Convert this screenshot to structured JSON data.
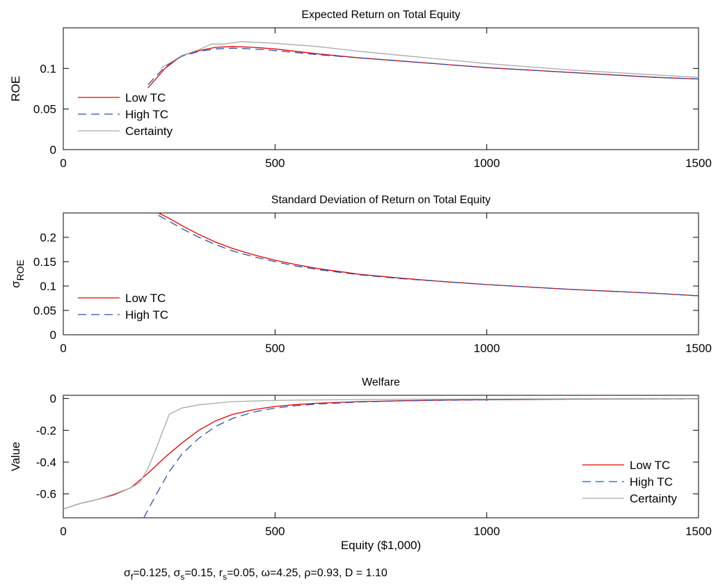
{
  "chart_data": [
    {
      "type": "line",
      "title": "Expected Return on Total Equity",
      "xlabel": "",
      "ylabel": "ROE",
      "ylabel_sub": "",
      "xlim": [
        0,
        1500
      ],
      "ylim": [
        0,
        0.15
      ],
      "xticks": [
        0,
        500,
        1000,
        1500
      ],
      "xtick_labels": [
        "0",
        "500",
        "1000",
        "1500"
      ],
      "yticks": [
        0,
        0.05,
        0.1
      ],
      "ytick_labels": [
        "0",
        "0.05",
        "0.1"
      ],
      "legend_position": "bottom-left",
      "series": [
        {
          "name": "Low TC",
          "color": "#e00000",
          "dash": "solid",
          "x": [
            200,
            240,
            280,
            320,
            360,
            400,
            450,
            500,
            600,
            700,
            800,
            900,
            1000,
            1100,
            1200,
            1300,
            1400,
            1500
          ],
          "y": [
            0.076,
            0.1,
            0.116,
            0.122,
            0.126,
            0.127,
            0.126,
            0.124,
            0.118,
            0.113,
            0.109,
            0.105,
            0.101,
            0.098,
            0.095,
            0.092,
            0.089,
            0.087
          ]
        },
        {
          "name": "High TC",
          "color": "#2a4fb0",
          "dash": "dashed",
          "x": [
            200,
            240,
            280,
            320,
            360,
            400,
            450,
            500,
            600,
            700,
            800,
            900,
            1000,
            1100,
            1200,
            1300,
            1400,
            1500
          ],
          "y": [
            0.08,
            0.102,
            0.115,
            0.121,
            0.124,
            0.125,
            0.124,
            0.122,
            0.117,
            0.113,
            0.109,
            0.105,
            0.101,
            0.098,
            0.095,
            0.092,
            0.089,
            0.087
          ]
        },
        {
          "name": "Certainty",
          "color": "#aaaaaa",
          "dash": "solid",
          "x": [
            230,
            280,
            320,
            350,
            380,
            420,
            500,
            600,
            700,
            800,
            900,
            1000,
            1100,
            1200,
            1300,
            1400,
            1500
          ],
          "y": [
            0.1,
            0.116,
            0.123,
            0.13,
            0.13,
            0.133,
            0.131,
            0.127,
            0.121,
            0.116,
            0.111,
            0.106,
            0.102,
            0.098,
            0.095,
            0.092,
            0.089
          ]
        }
      ]
    },
    {
      "type": "line",
      "title": "Standard Deviation of Return on Total Equity",
      "xlabel": "",
      "ylabel": "σ",
      "ylabel_sub": "ROE",
      "xlim": [
        0,
        1500
      ],
      "ylim": [
        0,
        0.25
      ],
      "xticks": [
        0,
        500,
        1000,
        1500
      ],
      "xtick_labels": [
        "0",
        "500",
        "1000",
        "1500"
      ],
      "yticks": [
        0,
        0.05,
        0.1,
        0.15,
        0.2
      ],
      "ytick_labels": [
        "0",
        "0.05",
        "0.1",
        "0.15",
        "0.2"
      ],
      "legend_position": "bottom-left",
      "series": [
        {
          "name": "Low TC",
          "color": "#e00000",
          "dash": "solid",
          "x": [
            225,
            250,
            280,
            320,
            360,
            400,
            450,
            500,
            550,
            600,
            700,
            800,
            900,
            1000,
            1100,
            1200,
            1300,
            1400,
            1500
          ],
          "y": [
            0.25,
            0.239,
            0.224,
            0.206,
            0.19,
            0.177,
            0.164,
            0.153,
            0.144,
            0.136,
            0.124,
            0.116,
            0.109,
            0.103,
            0.098,
            0.093,
            0.089,
            0.085,
            0.08
          ]
        },
        {
          "name": "High TC",
          "color": "#2a4fb0",
          "dash": "dashed",
          "x": [
            225,
            250,
            280,
            320,
            360,
            400,
            450,
            500,
            550,
            600,
            700,
            800,
            900,
            1000,
            1100,
            1200,
            1300,
            1400,
            1500
          ],
          "y": [
            0.245,
            0.233,
            0.218,
            0.2,
            0.185,
            0.172,
            0.16,
            0.15,
            0.141,
            0.134,
            0.123,
            0.115,
            0.109,
            0.103,
            0.098,
            0.093,
            0.089,
            0.085,
            0.08
          ]
        }
      ]
    },
    {
      "type": "line",
      "title": "Welfare",
      "xlabel": "Equity ($1,000)",
      "ylabel": "Value",
      "ylabel_sub": "",
      "xlim": [
        0,
        1500
      ],
      "ylim": [
        -0.75,
        0.02
      ],
      "xticks": [
        0,
        500,
        1000,
        1500
      ],
      "xtick_labels": [
        "0",
        "500",
        "1000",
        "1500"
      ],
      "yticks": [
        -0.6,
        -0.4,
        -0.2,
        0
      ],
      "ytick_labels": [
        "-0.6",
        "-0.4",
        "-0.2",
        "0"
      ],
      "legend_position": "bottom-right",
      "series": [
        {
          "name": "Low TC",
          "color": "#e00000",
          "dash": "solid",
          "x": [
            0,
            40,
            80,
            120,
            160,
            200,
            240,
            280,
            320,
            360,
            400,
            450,
            500,
            550,
            600,
            700,
            800,
            900,
            1000,
            1200,
            1500
          ],
          "y": [
            -0.695,
            -0.66,
            -0.635,
            -0.605,
            -0.56,
            -0.47,
            -0.37,
            -0.28,
            -0.2,
            -0.14,
            -0.1,
            -0.07,
            -0.05,
            -0.038,
            -0.03,
            -0.02,
            -0.014,
            -0.01,
            -0.008,
            -0.004,
            -0.002
          ]
        },
        {
          "name": "High TC",
          "color": "#2a4fb0",
          "dash": "dashed",
          "x": [
            190,
            220,
            250,
            280,
            320,
            360,
            400,
            450,
            500,
            550,
            600,
            700,
            800,
            900,
            1000,
            1200,
            1500
          ],
          "y": [
            -0.75,
            -0.6,
            -0.46,
            -0.35,
            -0.25,
            -0.175,
            -0.125,
            -0.085,
            -0.06,
            -0.045,
            -0.035,
            -0.022,
            -0.015,
            -0.011,
            -0.008,
            -0.004,
            -0.002
          ]
        },
        {
          "name": "Certainty",
          "color": "#aaaaaa",
          "dash": "solid",
          "x": [
            0,
            40,
            80,
            120,
            160,
            180,
            200,
            220,
            250,
            280,
            320,
            360,
            400,
            450,
            500,
            600,
            700,
            800,
            1000,
            1200,
            1500
          ],
          "y": [
            -0.695,
            -0.66,
            -0.635,
            -0.6,
            -0.56,
            -0.53,
            -0.44,
            -0.31,
            -0.1,
            -0.06,
            -0.04,
            -0.03,
            -0.02,
            -0.016,
            -0.012,
            -0.009,
            -0.007,
            -0.005,
            -0.003,
            -0.002,
            -0.001
          ]
        }
      ]
    }
  ],
  "footnote": {
    "parts": [
      {
        "text": "σ"
      },
      {
        "text": "f",
        "sub": true
      },
      {
        "text": "=0.125, "
      },
      {
        "text": "σ"
      },
      {
        "text": "s",
        "sub": true
      },
      {
        "text": "=0.15, "
      },
      {
        "text": "r"
      },
      {
        "text": "s",
        "sub": true
      },
      {
        "text": "=0.05, ω=4.25, ρ=0.93, D = 1.10"
      }
    ]
  }
}
